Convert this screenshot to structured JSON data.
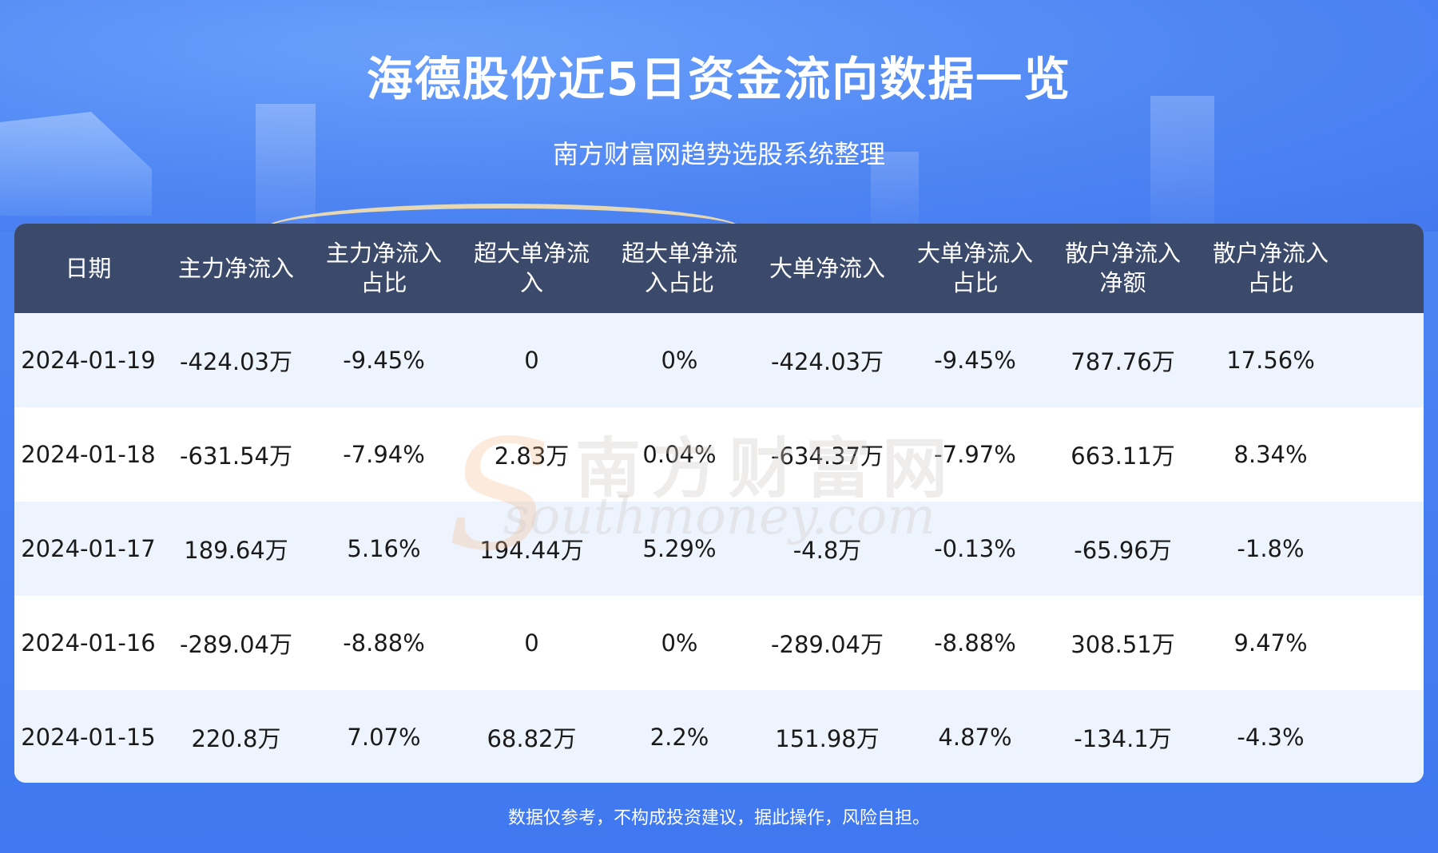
{
  "header": {
    "title": "海德股份近5日资金流向数据一览",
    "subtitle": "南方财富网趋势选股系统整理"
  },
  "table": {
    "columns": [
      [
        "日期"
      ],
      [
        "主力净流入"
      ],
      [
        "主力净流入",
        "占比"
      ],
      [
        "超大单净流",
        "入"
      ],
      [
        "超大单净流",
        "入占比"
      ],
      [
        "大单净流入"
      ],
      [
        "大单净流入",
        "占比"
      ],
      [
        "散户净流入",
        "净额"
      ],
      [
        "散户净流入",
        "占比"
      ]
    ],
    "rows": [
      [
        "2024-01-19",
        "-424.03万",
        "-9.45%",
        "0",
        "0%",
        "-424.03万",
        "-9.45%",
        "787.76万",
        "17.56%"
      ],
      [
        "2024-01-18",
        "-631.54万",
        "-7.94%",
        "2.83万",
        "0.04%",
        "-634.37万",
        "-7.97%",
        "663.11万",
        "8.34%"
      ],
      [
        "2024-01-17",
        "189.64万",
        "5.16%",
        "194.44万",
        "5.29%",
        "-4.8万",
        "-0.13%",
        "-65.96万",
        "-1.8%"
      ],
      [
        "2024-01-16",
        "-289.04万",
        "-8.88%",
        "0",
        "0%",
        "-289.04万",
        "-8.88%",
        "308.51万",
        "9.47%"
      ],
      [
        "2024-01-15",
        "220.8万",
        "7.07%",
        "68.82万",
        "2.2%",
        "151.98万",
        "4.87%",
        "-134.1万",
        "-4.3%"
      ]
    ]
  },
  "watermark": {
    "cn": "南方财富网",
    "en": "southmoney.com",
    "letter": "S"
  },
  "footer": {
    "disclaimer": "数据仅参考，不构成投资建议，据此操作，风险自担。"
  },
  "colors": {
    "background": "#4a82f2",
    "header_row": "#3b4a6b",
    "stripe": "#eef4fe"
  }
}
